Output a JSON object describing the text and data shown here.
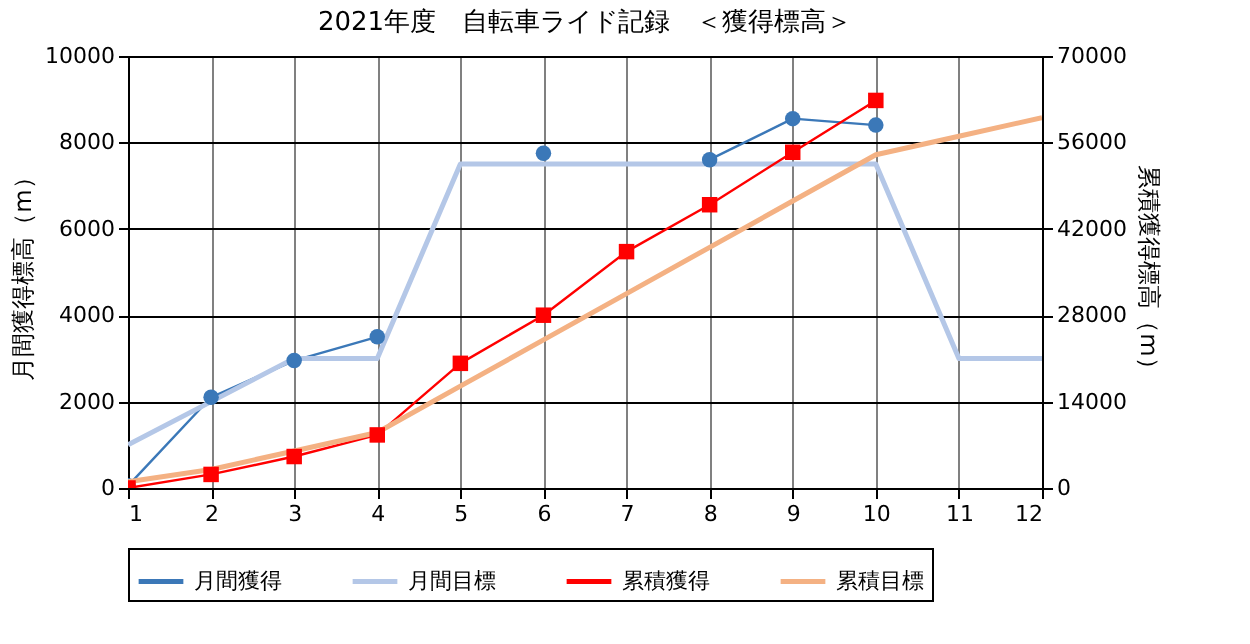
{
  "chart_data": {
    "type": "line",
    "title": "2021年度　自転車ライド記録　＜獲得標高＞",
    "x": [
      1,
      2,
      3,
      4,
      5,
      6,
      7,
      8,
      9,
      10,
      11,
      12
    ],
    "xlim": [
      1,
      12
    ],
    "xticks": [
      1,
      2,
      3,
      4,
      5,
      6,
      7,
      8,
      9,
      10,
      11,
      12
    ],
    "ylim": [
      0,
      10000
    ],
    "yticks": [
      0,
      2000,
      4000,
      6000,
      8000,
      10000
    ],
    "y2lim": [
      0,
      70000
    ],
    "y2ticks": [
      0,
      14000,
      28000,
      42000,
      56000,
      70000
    ],
    "ylabel": "月間獲得標高（m）",
    "y2label": "累積獲得標高（m）",
    "grid": true,
    "legend": "bottom",
    "series": [
      {
        "name": "月間獲得",
        "color": "#3b78b8",
        "marker": "circle",
        "values": [
          50,
          2100,
          2950,
          3500,
          null,
          7750,
          null,
          7600,
          8550,
          8400,
          null,
          null
        ]
      },
      {
        "name": "月間目標",
        "color": "#b4c7e7",
        "marker": "none",
        "values": [
          1000,
          2000,
          3000,
          3000,
          7500,
          7500,
          7500,
          7500,
          7500,
          7500,
          3000,
          3000
        ]
      },
      {
        "name": "累積獲得",
        "color": "#ff0000",
        "marker": "square",
        "axis": "y2",
        "values": [
          0,
          2200,
          5100,
          8600,
          20200,
          28000,
          38300,
          45900,
          54400,
          62800,
          null,
          null
        ]
      },
      {
        "name": "累積目標",
        "color": "#f4b183",
        "marker": "none",
        "axis": "y2",
        "values": [
          1000,
          3000,
          6000,
          9000,
          16500,
          24000,
          31500,
          39000,
          46500,
          54000,
          57000,
          60000
        ]
      }
    ]
  }
}
